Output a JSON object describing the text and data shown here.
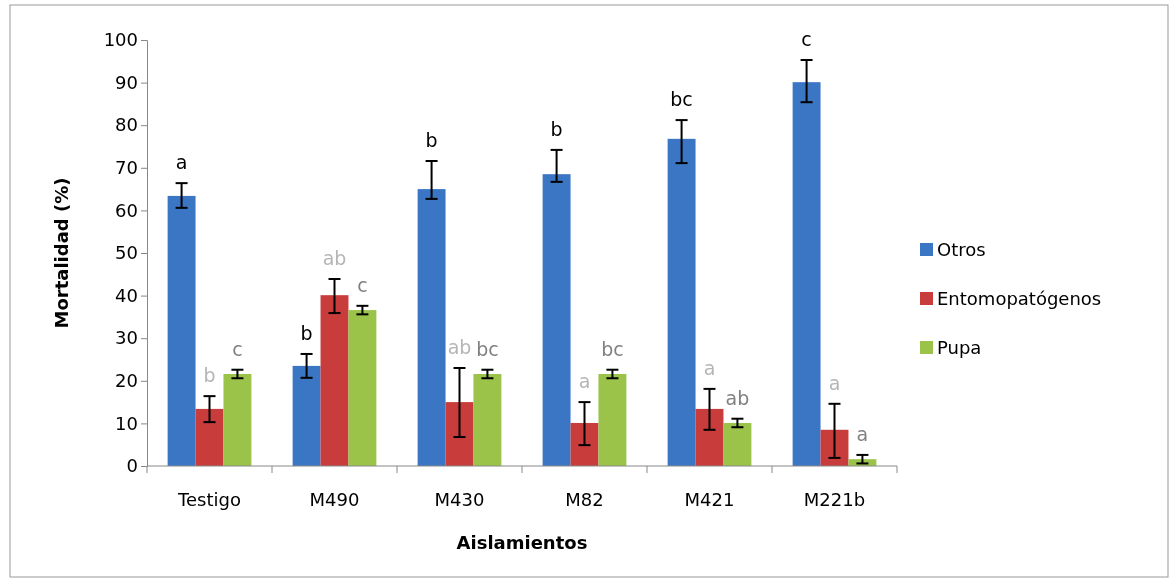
{
  "chart_data": {
    "type": "bar",
    "xlabel": "Aislamientos",
    "ylabel": "Mortalidad (%)",
    "categories": [
      "Testigo",
      "M490",
      "M430",
      "M82",
      "M421",
      "M221b"
    ],
    "ylim": [
      0,
      100
    ],
    "yticks": [
      0,
      10,
      20,
      30,
      40,
      50,
      60,
      70,
      80,
      90,
      100
    ],
    "grid": false,
    "legend": "right",
    "series": [
      {
        "name": "Otros",
        "color": "#3a76c4",
        "values": [
          63.4,
          23.5,
          65,
          68.5,
          76.8,
          90.1
        ],
        "errors": [
          [
            60.6,
            66.4
          ],
          [
            20.7,
            26.3
          ],
          [
            62.7,
            71.6
          ],
          [
            66.7,
            74.2
          ],
          [
            71.1,
            81.2
          ],
          [
            85.4,
            95.3
          ]
        ],
        "value_labels": [
          "a",
          "b",
          "b",
          "b",
          "bc",
          "c"
        ]
      },
      {
        "name": "Entomopatógenos",
        "color": "#c83c3c",
        "values": [
          13.4,
          40.1,
          15,
          10.1,
          13.4,
          8.5
        ],
        "errors": [
          [
            10.3,
            16.4
          ],
          [
            35.9,
            43.9
          ],
          [
            6.8,
            23
          ],
          [
            4.9,
            15
          ],
          [
            8.5,
            18.1
          ],
          [
            1.9,
            14.6
          ]
        ],
        "value_labels": [
          "b",
          "ab",
          "ab",
          "a",
          "a",
          "a"
        ]
      },
      {
        "name": "Pupa",
        "color": "#9bc34a",
        "values": [
          21.6,
          36.6,
          21.6,
          21.6,
          10.1,
          1.6
        ],
        "errors": [
          1,
          1,
          1,
          1,
          1,
          1
        ],
        "value_labels": [
          "c",
          "c",
          "bc",
          "bc",
          "ab",
          "a"
        ]
      }
    ]
  }
}
